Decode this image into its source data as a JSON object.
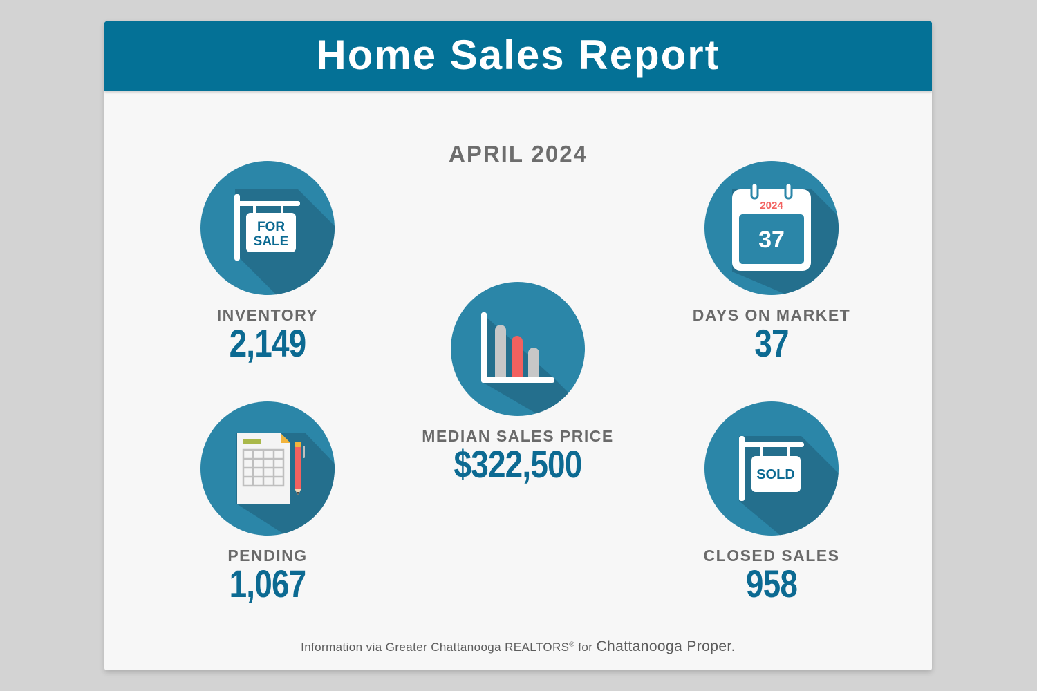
{
  "header": {
    "title": "Home Sales Report"
  },
  "period": "APRIL 2024",
  "stats": {
    "inventory": {
      "label": "INVENTORY",
      "value": "2,149",
      "icon": "for-sale-sign-icon",
      "sign_line1": "FOR",
      "sign_line2": "SALE"
    },
    "days_on_market": {
      "label": "DAYS ON MARKET",
      "value": "37",
      "icon": "calendar-icon",
      "calendar_year": "2024",
      "calendar_day": "37"
    },
    "median_sales_price": {
      "label": "MEDIAN SALES PRICE",
      "value": "$322,500",
      "icon": "bar-chart-icon"
    },
    "pending": {
      "label": "PENDING",
      "value": "1,067",
      "icon": "spreadsheet-pencil-icon"
    },
    "closed_sales": {
      "label": "CLOSED SALES",
      "value": "958",
      "icon": "sold-sign-icon",
      "sign_text": "SOLD"
    }
  },
  "footer": {
    "text": "Information via Greater Chattanooga REALTORS",
    "reg_mark": "®",
    "connector": " for ",
    "place": "Chattanooga Proper."
  },
  "colors": {
    "background": "#d3d3d3",
    "card": "#f7f7f7",
    "header": "#047196",
    "circle": "#2b86a8",
    "circle_shadow": "#246f8d",
    "value_text": "#0c6a92",
    "label_text": "#6a6a6a",
    "accent_red": "#f2615f"
  }
}
